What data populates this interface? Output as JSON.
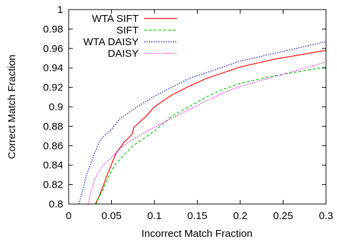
{
  "chart_data": {
    "type": "line",
    "xlabel": "Incorrect Match Fraction",
    "ylabel": "Correct Match Fraction",
    "xlim": [
      0,
      0.3
    ],
    "ylim": [
      0.8,
      1.0
    ],
    "xticks": [
      0,
      0.05,
      0.1,
      0.15,
      0.2,
      0.25,
      0.3
    ],
    "xtick_labels": [
      "0",
      "0.05",
      "0.1",
      "0.15",
      "0.2",
      "0.25",
      "0.3"
    ],
    "yticks": [
      0.8,
      0.82,
      0.84,
      0.86,
      0.88,
      0.9,
      0.92,
      0.94,
      0.96,
      0.98,
      1.0
    ],
    "ytick_labels": [
      "0.8",
      "0.82",
      "0.84",
      "0.86",
      "0.88",
      "0.9",
      "0.92",
      "0.94",
      "0.96",
      "0.98",
      "1"
    ],
    "grid": false,
    "legend_position": "top-left",
    "series": [
      {
        "name": "WTA SIFT",
        "color": "#ff0000",
        "dash": "solid",
        "points": [
          [
            0.031,
            0.8
          ],
          [
            0.035,
            0.807
          ],
          [
            0.04,
            0.818
          ],
          [
            0.045,
            0.83
          ],
          [
            0.05,
            0.841
          ],
          [
            0.055,
            0.852
          ],
          [
            0.06,
            0.858
          ],
          [
            0.065,
            0.864
          ],
          [
            0.07,
            0.868
          ],
          [
            0.074,
            0.872
          ],
          [
            0.076,
            0.879
          ],
          [
            0.08,
            0.882
          ],
          [
            0.09,
            0.89
          ],
          [
            0.1,
            0.9
          ],
          [
            0.12,
            0.912
          ],
          [
            0.14,
            0.921
          ],
          [
            0.16,
            0.929
          ],
          [
            0.18,
            0.935
          ],
          [
            0.2,
            0.941
          ],
          [
            0.22,
            0.945
          ],
          [
            0.24,
            0.949
          ],
          [
            0.26,
            0.952
          ],
          [
            0.28,
            0.955
          ],
          [
            0.3,
            0.958
          ]
        ]
      },
      {
        "name": "SIFT",
        "color": "#00cc00",
        "dash": "dashed",
        "points": [
          [
            0.032,
            0.8
          ],
          [
            0.036,
            0.808
          ],
          [
            0.04,
            0.815
          ],
          [
            0.045,
            0.825
          ],
          [
            0.05,
            0.834
          ],
          [
            0.055,
            0.842
          ],
          [
            0.06,
            0.846
          ],
          [
            0.065,
            0.851
          ],
          [
            0.07,
            0.855
          ],
          [
            0.075,
            0.86
          ],
          [
            0.08,
            0.863
          ],
          [
            0.09,
            0.869
          ],
          [
            0.1,
            0.875
          ],
          [
            0.12,
            0.89
          ],
          [
            0.14,
            0.9
          ],
          [
            0.16,
            0.91
          ],
          [
            0.18,
            0.918
          ],
          [
            0.2,
            0.924
          ],
          [
            0.22,
            0.928
          ],
          [
            0.24,
            0.932
          ],
          [
            0.26,
            0.935
          ],
          [
            0.28,
            0.938
          ],
          [
            0.3,
            0.941
          ]
        ]
      },
      {
        "name": "WTA DAISY",
        "color": "#0000cc",
        "dash": "dotted",
        "points": [
          [
            0.012,
            0.8
          ],
          [
            0.015,
            0.81
          ],
          [
            0.018,
            0.82
          ],
          [
            0.021,
            0.83
          ],
          [
            0.025,
            0.84
          ],
          [
            0.03,
            0.852
          ],
          [
            0.035,
            0.862
          ],
          [
            0.04,
            0.869
          ],
          [
            0.05,
            0.877
          ],
          [
            0.06,
            0.888
          ],
          [
            0.07,
            0.894
          ],
          [
            0.08,
            0.9
          ],
          [
            0.1,
            0.911
          ],
          [
            0.12,
            0.92
          ],
          [
            0.14,
            0.929
          ],
          [
            0.16,
            0.935
          ],
          [
            0.18,
            0.941
          ],
          [
            0.2,
            0.947
          ],
          [
            0.22,
            0.951
          ],
          [
            0.24,
            0.955
          ],
          [
            0.26,
            0.959
          ],
          [
            0.28,
            0.963
          ],
          [
            0.3,
            0.967
          ]
        ]
      },
      {
        "name": "DAISY",
        "color": "#ff00ff",
        "dash": "dotted",
        "points": [
          [
            0.023,
            0.8
          ],
          [
            0.025,
            0.81
          ],
          [
            0.028,
            0.818
          ],
          [
            0.03,
            0.825
          ],
          [
            0.035,
            0.833
          ],
          [
            0.04,
            0.84
          ],
          [
            0.05,
            0.848
          ],
          [
            0.06,
            0.857
          ],
          [
            0.07,
            0.864
          ],
          [
            0.08,
            0.869
          ],
          [
            0.1,
            0.879
          ],
          [
            0.12,
            0.888
          ],
          [
            0.14,
            0.897
          ],
          [
            0.16,
            0.906
          ],
          [
            0.18,
            0.914
          ],
          [
            0.2,
            0.921
          ],
          [
            0.22,
            0.926
          ],
          [
            0.24,
            0.931
          ],
          [
            0.26,
            0.936
          ],
          [
            0.28,
            0.941
          ],
          [
            0.3,
            0.946
          ]
        ]
      }
    ]
  }
}
